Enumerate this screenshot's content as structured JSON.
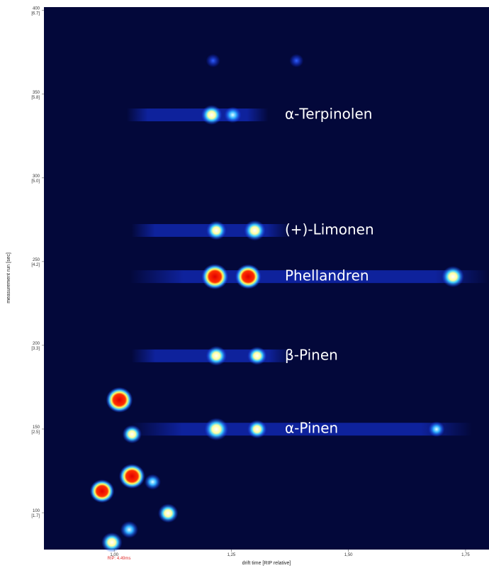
{
  "chart_data": {
    "type": "spot-map",
    "x_label": "drift time [RIP relative]",
    "y_label": "measurement run [sec]",
    "x_note": "RIP: 4.49ms",
    "xlim": [
      0.85,
      1.8
    ],
    "ylim": [
      78,
      402
    ],
    "xticks": [
      {
        "value": 1.0,
        "label": "1,00"
      },
      {
        "value": 1.25,
        "label": "1,25"
      },
      {
        "value": 1.5,
        "label": "1,50"
      },
      {
        "value": 1.75,
        "label": "1,75"
      }
    ],
    "yticks": [
      {
        "value": 100,
        "label": "100",
        "sublabel": "[1.7]"
      },
      {
        "value": 150,
        "label": "150",
        "sublabel": "[2.5]"
      },
      {
        "value": 200,
        "label": "200",
        "sublabel": "[3.3]"
      },
      {
        "value": 250,
        "label": "250",
        "sublabel": "[4.2]"
      },
      {
        "value": 300,
        "label": "300",
        "sublabel": "[5.0]"
      },
      {
        "value": 350,
        "label": "350",
        "sublabel": "[5.8]"
      },
      {
        "value": 400,
        "label": "400",
        "sublabel": "[6.7]"
      }
    ],
    "background": "#03083a",
    "annotations": [
      {
        "text": "α-Terpinolen",
        "y": 337.6
      },
      {
        "text": "(+)-Limonen",
        "y": 268.6
      },
      {
        "text": "Phellandren",
        "y": 241
      },
      {
        "text": "β-Pinen",
        "y": 193.7
      },
      {
        "text": "α-Pinen",
        "y": 149.9
      }
    ],
    "x": [
      1.208,
      1.253,
      1.218,
      1.3,
      1.215,
      1.286,
      1.723,
      1.218,
      1.305,
      1.218,
      1.305,
      1.688,
      1.011,
      1.038,
      1.038,
      0.974,
      1.115,
      1.032,
      0.995,
      1.082,
      1.211,
      1.389
    ],
    "y": [
      337.6,
      337.6,
      268.6,
      268.6,
      241,
      241,
      241,
      193.7,
      193.7,
      149.9,
      149.9,
      149.9,
      167.4,
      146.9,
      121.8,
      112.9,
      99.7,
      89.9,
      82.3,
      118.4,
      370,
      370
    ],
    "values": [
      0.6,
      0.35,
      0.55,
      0.65,
      1.0,
      0.95,
      0.7,
      0.6,
      0.5,
      0.8,
      0.5,
      0.3,
      1.0,
      0.5,
      0.95,
      0.85,
      0.55,
      0.4,
      0.6,
      0.3,
      0.15,
      0.15
    ]
  }
}
